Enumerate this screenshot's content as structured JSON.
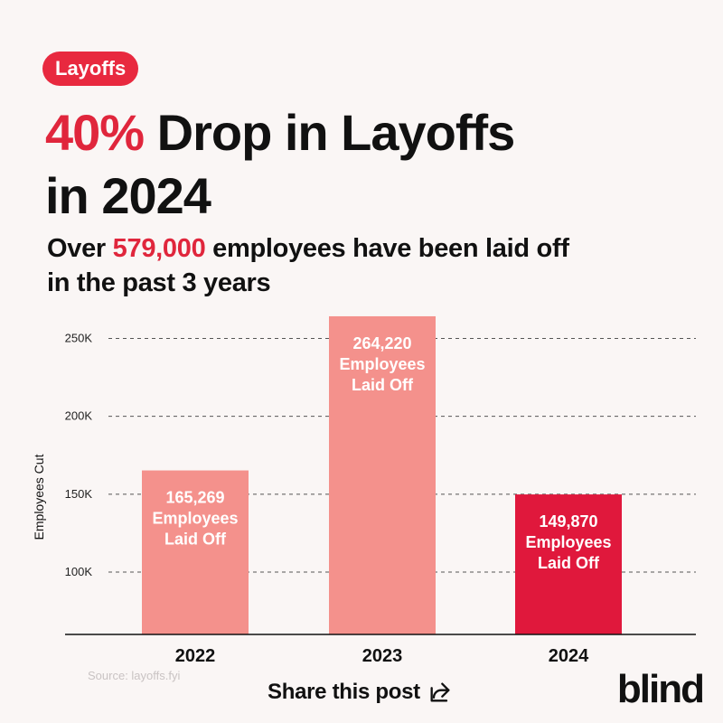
{
  "tag": "Layoffs",
  "headline": {
    "accent": "40%",
    "line1_rest": " Drop in Layoffs",
    "line2": "in 2024"
  },
  "subhead": {
    "before": "Over ",
    "accent": "579,000",
    "after": " employees have been laid off",
    "line2": "in the past 3 years"
  },
  "chart_data": {
    "type": "bar",
    "categories": [
      "2022",
      "2023",
      "2024"
    ],
    "values": [
      165269,
      264220,
      149870
    ],
    "data_labels": [
      [
        "165,269",
        "Employees",
        "Laid Off"
      ],
      [
        "264,220",
        "Employees",
        "Laid Off"
      ],
      [
        "149,870",
        "Employees",
        "Laid Off"
      ]
    ],
    "ylabel": "Employees Cut",
    "yticks": [
      100000,
      150000,
      200000,
      250000
    ],
    "ytick_labels": [
      "100K",
      "150K",
      "200K",
      "250K"
    ],
    "ylim": [
      60000,
      270000
    ],
    "grid": "dashed-horizontal",
    "bar_colors": [
      "#f4918c",
      "#f4918c",
      "#e0183c"
    ]
  },
  "source": "Source: layoffs.fyi",
  "share_label": "Share this post",
  "share_icon": "share-arrow-icon",
  "brand": "blind"
}
